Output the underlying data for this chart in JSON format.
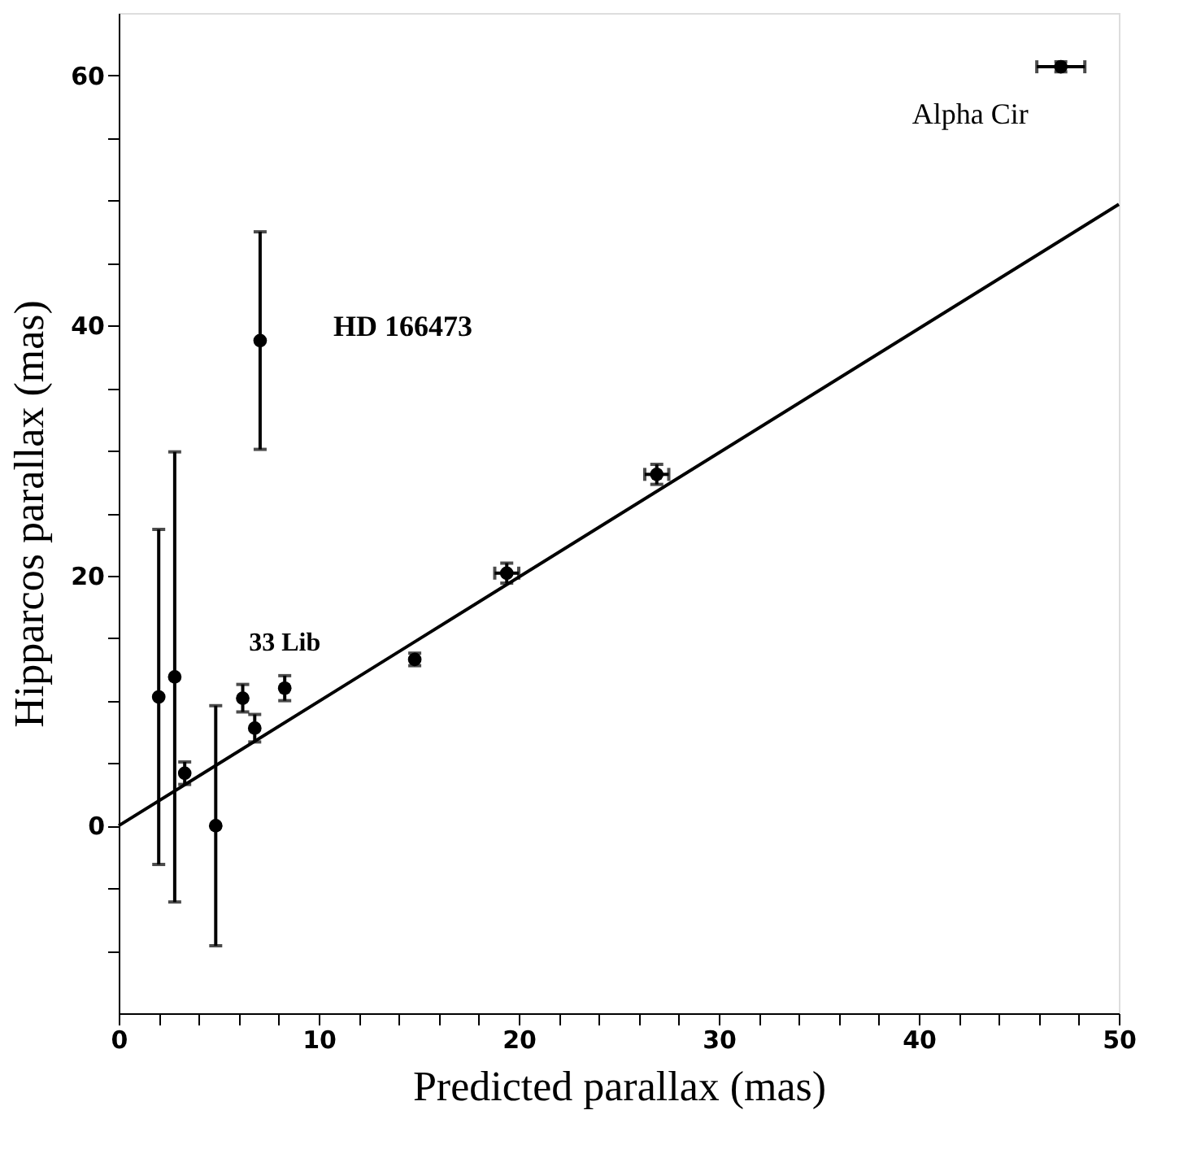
{
  "chart_data": {
    "type": "scatter",
    "xlabel": "Predicted parallax (mas)",
    "ylabel": "Hipparcos parallax (mas)",
    "xlim": [
      0,
      50
    ],
    "ylim": [
      -15,
      65
    ],
    "xticks": [
      0,
      {
        "value": 2,
        "label": null
      },
      {
        "value": 4,
        "label": null
      },
      {
        "value": 6,
        "label": null
      },
      {
        "value": 8,
        "label": null
      },
      10,
      {
        "value": 12,
        "label": null
      },
      {
        "value": 14,
        "label": null
      },
      {
        "value": 16,
        "label": null
      },
      {
        "value": 18,
        "label": null
      },
      20,
      {
        "value": 22,
        "label": null
      },
      {
        "value": 24,
        "label": null
      },
      {
        "value": 26,
        "label": null
      },
      {
        "value": 28,
        "label": null
      },
      30,
      {
        "value": 32,
        "label": null
      },
      {
        "value": 34,
        "label": null
      },
      {
        "value": 36,
        "label": null
      },
      {
        "value": 38,
        "label": null
      },
      40,
      {
        "value": 42,
        "label": null
      },
      {
        "value": 44,
        "label": null
      },
      {
        "value": 46,
        "label": null
      },
      {
        "value": 48,
        "label": null
      },
      50
    ],
    "yticks": [
      {
        "value": -10,
        "label": null
      },
      {
        "value": -5,
        "label": null
      },
      0,
      {
        "value": 5,
        "label": null
      },
      {
        "value": 10,
        "label": null
      },
      {
        "value": 15,
        "label": null
      },
      20,
      {
        "value": 25,
        "label": null
      },
      {
        "value": 30,
        "label": null
      },
      {
        "value": 35,
        "label": null
      },
      40,
      {
        "value": 45,
        "label": null
      },
      {
        "value": 50,
        "label": null
      },
      {
        "value": 55,
        "label": null
      },
      60
    ],
    "grid": false,
    "marker": "circle",
    "series": [
      {
        "color": "#000000",
        "x": [
          2.0,
          2.8,
          3.3,
          4.85,
          6.2,
          6.8,
          7.07,
          8.3,
          14.8,
          19.4,
          26.9,
          47.1
        ],
        "values": [
          10.3,
          11.9,
          4.2,
          0.0,
          10.2,
          7.8,
          38.8,
          11.0,
          13.3,
          20.2,
          28.1,
          60.7
        ],
        "errors": [
          13.4,
          18.0,
          0.9,
          9.6,
          1.1,
          1.1,
          8.7,
          1.0,
          0.5,
          0.8,
          0.8,
          0.4
        ],
        "xerrors": [
          null,
          null,
          null,
          null,
          null,
          null,
          null,
          null,
          null,
          0.6,
          0.6,
          1.2
        ]
      },
      {
        "type": "line",
        "color": "#000000",
        "x": [
          0,
          50
        ],
        "values": [
          0,
          49.7
        ],
        "line_style": "solid",
        "marker": "none"
      }
    ],
    "annotations": [
      {
        "text": "HD 166473",
        "x": 7.07,
        "y": 38.8
      },
      {
        "text": "33 Lib",
        "x": 8.3,
        "y": 11.0
      },
      {
        "text": "Alpha Cir",
        "x": 47.1,
        "y": 60.7
      }
    ]
  }
}
